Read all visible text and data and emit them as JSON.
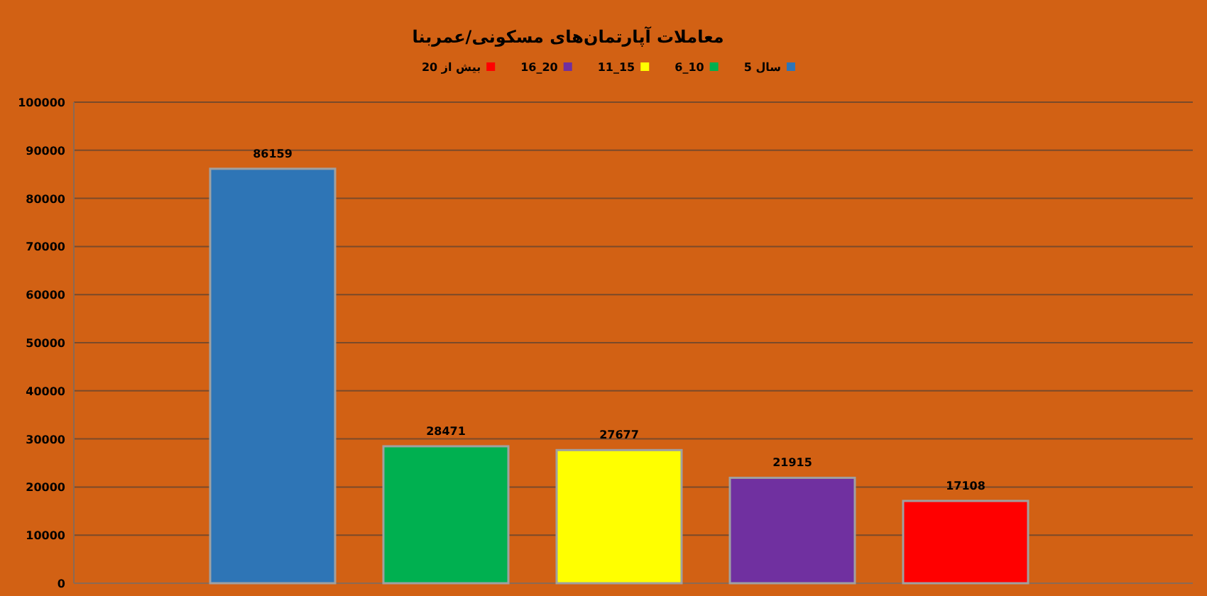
{
  "chart_data": {
    "type": "bar",
    "title": "معاملات آپارتمان‌های مسکونی/عمربنا",
    "categories": [
      null
    ],
    "series": [
      {
        "name": "5 سال",
        "color": "#2e75b6",
        "values": [
          86159
        ]
      },
      {
        "name": "6_10",
        "color": "#00b050",
        "values": [
          28471
        ]
      },
      {
        "name": "11_15",
        "color": "#ffff00",
        "values": [
          27677
        ]
      },
      {
        "name": "16_20",
        "color": "#7030a0",
        "values": [
          21915
        ]
      },
      {
        "name": "بیش از 20",
        "color": "#ff0000",
        "values": [
          17108
        ]
      }
    ],
    "ylim": [
      0,
      100000
    ],
    "yticks": [
      0,
      10000,
      20000,
      30000,
      40000,
      50000,
      60000,
      70000,
      80000,
      90000,
      100000
    ],
    "grid": "y",
    "legend": "top",
    "data_labels": true
  }
}
